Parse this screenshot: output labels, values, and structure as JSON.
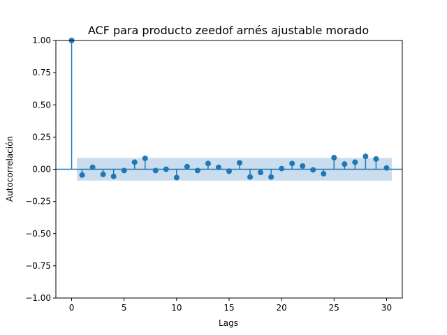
{
  "chart_data": {
    "type": "scatter",
    "subtype": "acf-stem",
    "title": "ACF para producto zeedof arnés ajustable morado",
    "xlabel": "Lags",
    "ylabel": "Autocorrelación",
    "xlim": [
      -1.5,
      31.5
    ],
    "ylim": [
      -1.0,
      1.0
    ],
    "x_ticks": [
      0,
      5,
      10,
      15,
      20,
      25,
      30
    ],
    "x_tick_labels": [
      "0",
      "5",
      "10",
      "15",
      "20",
      "25",
      "30"
    ],
    "y_ticks": [
      -1.0,
      -0.75,
      -0.5,
      -0.25,
      0.0,
      0.25,
      0.5,
      0.75,
      1.0
    ],
    "y_tick_labels": [
      "−1.00",
      "−0.75",
      "−0.50",
      "−0.25",
      "0.00",
      "0.25",
      "0.50",
      "0.75",
      "1.00"
    ],
    "grid": false,
    "legend": "none",
    "x": [
      0,
      1,
      2,
      3,
      4,
      5,
      6,
      7,
      8,
      9,
      10,
      11,
      12,
      13,
      14,
      15,
      16,
      17,
      18,
      19,
      20,
      21,
      22,
      23,
      24,
      25,
      26,
      27,
      28,
      29,
      30
    ],
    "values": [
      1.0,
      -0.045,
      0.015,
      -0.04,
      -0.055,
      -0.01,
      0.055,
      0.085,
      -0.01,
      0.0,
      -0.065,
      0.02,
      -0.01,
      0.045,
      0.015,
      -0.015,
      0.05,
      -0.06,
      -0.025,
      -0.06,
      0.005,
      0.045,
      0.025,
      -0.005,
      -0.035,
      0.09,
      0.04,
      0.055,
      0.1,
      0.08,
      0.01
    ],
    "confidence_band": {
      "x_start": 0.5,
      "x_end": 30.5,
      "upper": 0.088,
      "lower": -0.088
    },
    "colors": {
      "stem": "#1f77b4",
      "marker": "#1f77b4",
      "band": "#a6c6e4",
      "zero_line": "#1f77b4"
    }
  }
}
